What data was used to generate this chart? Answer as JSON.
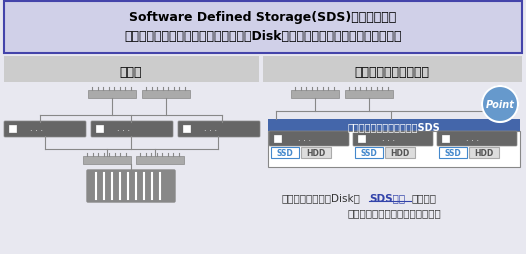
{
  "title_line1": "Software Defined Storage(SDS)技術を用いて",
  "title_line2": "外部ストレージを用いず、サーバ内蔵Diskを大きな論理ボリュームとして利用",
  "left_label": "従来型",
  "right_label": "ハイパーコンバージド",
  "sds_label": "ストレージソフトウェア＝SDS",
  "bottom_text1": "複数ノードの内蔵Diskを",
  "bottom_text2": "SDS技術",
  "bottom_text3": "を用いて",
  "bottom_text4": "１つの論理ボリュームとして利用",
  "point_label": "Point",
  "bg_color": "#e8e8f0",
  "title_bg": "#d0d0e8",
  "title_border": "#4444aa",
  "server_color": "#666666",
  "sds_bar_color": "#4466aa",
  "sds_text_color": "#ffffff",
  "switch_color": "#aaaaaa",
  "storage_color": "#888888",
  "ssd_color": "#4488cc",
  "hdd_color": "#cccccc",
  "node_outline": "#888888",
  "label_bg": "#cccccc",
  "point_circle_color": "#6699cc",
  "text_color_blue": "#3344aa",
  "text_color_dark": "#333333"
}
